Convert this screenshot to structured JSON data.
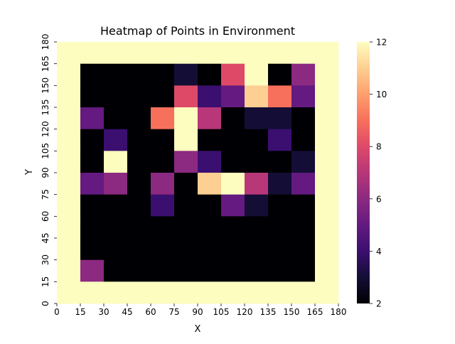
{
  "chart_data": {
    "type": "heatmap",
    "title": "Heatmap of Points in Environment",
    "xlabel": "X",
    "ylabel": "Y",
    "x_ticks": [
      "0",
      "15",
      "30",
      "45",
      "60",
      "75",
      "90",
      "105",
      "120",
      "135",
      "150",
      "165",
      "180"
    ],
    "y_ticks": [
      "0",
      "15",
      "30",
      "45",
      "60",
      "75",
      "90",
      "105",
      "120",
      "135",
      "150",
      "165",
      "180"
    ],
    "x_range": [
      0,
      180
    ],
    "y_range": [
      0,
      180
    ],
    "cell_size": 15,
    "colormap": "magma",
    "color_range": [
      2,
      12
    ],
    "colorbar_ticks": [
      "2",
      "4",
      "6",
      "8",
      "10",
      "12"
    ],
    "grid": false,
    "matrix_rows_from_top": [
      [
        12,
        12,
        12,
        12,
        12,
        12,
        12,
        12,
        12,
        12,
        12,
        12
      ],
      [
        12,
        2,
        2,
        2,
        2,
        3,
        2,
        8,
        12,
        2,
        6,
        12
      ],
      [
        12,
        2,
        2,
        2,
        2,
        8,
        4,
        5,
        11,
        9,
        5,
        12
      ],
      [
        12,
        5,
        2,
        2,
        9,
        12,
        7,
        2,
        3,
        3,
        2,
        12
      ],
      [
        12,
        2,
        4,
        2,
        2,
        12,
        2,
        2,
        2,
        4,
        2,
        12
      ],
      [
        12,
        2,
        12,
        2,
        2,
        6,
        4,
        2,
        2,
        2,
        3,
        12
      ],
      [
        12,
        5,
        6,
        2,
        6,
        2,
        11,
        12,
        7,
        3,
        5,
        12
      ],
      [
        12,
        2,
        2,
        2,
        4,
        2,
        2,
        5,
        3,
        2,
        2,
        12
      ],
      [
        12,
        2,
        2,
        2,
        2,
        2,
        2,
        2,
        2,
        2,
        2,
        12
      ],
      [
        12,
        2,
        2,
        2,
        2,
        2,
        2,
        2,
        2,
        2,
        2,
        12
      ],
      [
        12,
        6,
        2,
        2,
        2,
        2,
        2,
        2,
        2,
        2,
        2,
        12
      ],
      [
        12,
        12,
        12,
        12,
        12,
        12,
        12,
        12,
        12,
        12,
        12,
        12
      ]
    ]
  }
}
